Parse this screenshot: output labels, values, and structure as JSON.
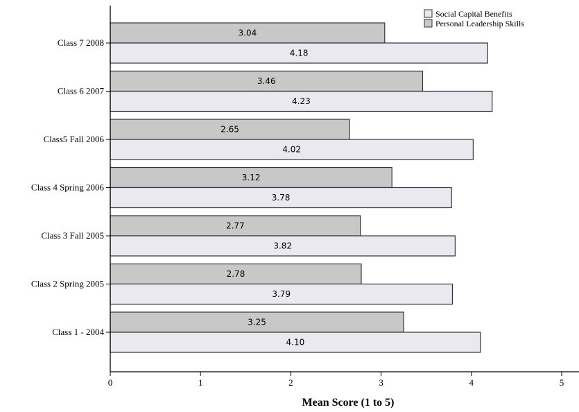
{
  "chart_data": {
    "type": "bar",
    "orientation": "horizontal",
    "categories": [
      "Class 7 2008",
      "Class 6 2007",
      "Class5 Fall 2006",
      "Class 4 Spring 2006",
      "Class 3 Fall 2005",
      "Class 2 Spring 2005",
      "Class 1 - 2004"
    ],
    "series": [
      {
        "name": "Personal Leadership Skills",
        "color": "#c8c8c8",
        "values": [
          3.04,
          3.46,
          2.65,
          3.12,
          2.77,
          2.78,
          3.25
        ],
        "labels": [
          "3.04",
          "3.46",
          "2.65",
          "3.12",
          "2.77",
          "2.78",
          "3.25"
        ]
      },
      {
        "name": "Social Capital Benefits",
        "color": "#e9e9ef",
        "values": [
          4.18,
          4.23,
          4.02,
          3.78,
          3.82,
          3.79,
          4.1
        ],
        "labels": [
          "4.18",
          "4.23",
          "4.02",
          "3.78",
          "3.82",
          "3.79",
          "4.10"
        ]
      }
    ],
    "legend": {
      "position": "top-right",
      "entries": [
        "Social Capital Benefits",
        "Personal Leadership Skills"
      ]
    },
    "xlabel": "Mean Score (1 to 5)",
    "ylabel": "",
    "xlim": [
      0,
      5
    ],
    "xticks": [
      "0",
      "1",
      "2",
      "3",
      "4",
      "5"
    ],
    "grid": false
  }
}
